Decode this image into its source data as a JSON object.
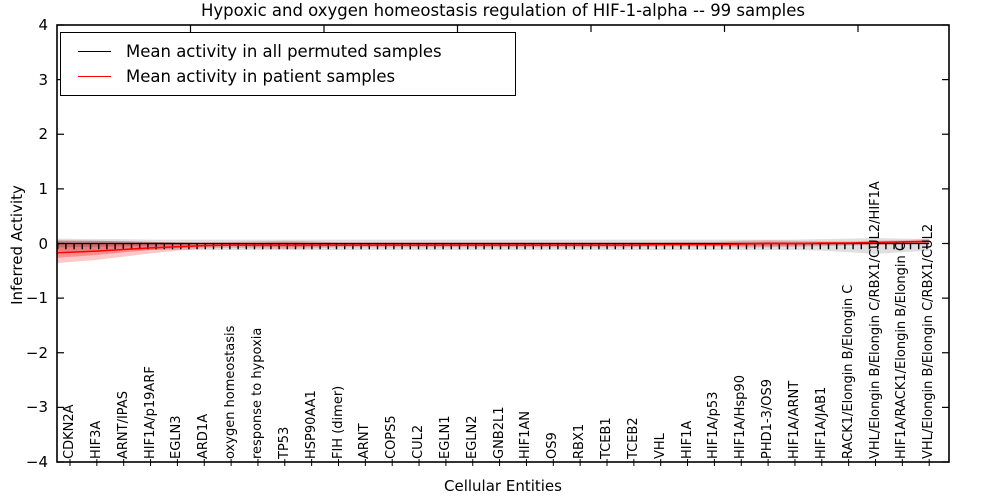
{
  "title": "Hypoxic and oxygen homeostasis regulation of HIF-1-alpha -- 99 samples",
  "legend": {
    "entries": [
      {
        "label": "Mean activity in all permuted samples",
        "color": "#000000"
      },
      {
        "label": "Mean activity in patient samples",
        "color": "#ff0000"
      }
    ],
    "position": "upper left"
  },
  "axes": {
    "y_label": "Inferred Activity",
    "x_label": "Cellular Entities",
    "y_ticks": [
      "4",
      "3",
      "2",
      "1",
      "0",
      "−1",
      "−2",
      "−3",
      "−4"
    ],
    "y_tick_values": [
      4,
      3,
      2,
      1,
      0,
      -1,
      -2,
      -3,
      -4
    ]
  },
  "chart_data": {
    "type": "line",
    "title": "Hypoxic and oxygen homeostasis regulation of HIF-1-alpha -- 99 samples",
    "xlabel": "Cellular Entities",
    "ylabel": "Inferred Activity",
    "ylim": [
      -4,
      4
    ],
    "grid": false,
    "legend_position": "upper left",
    "categories": [
      "CDKN2A",
      "HIF3A",
      "ARNT/IPAS",
      "HIF1A/p19ARF",
      "EGLN3",
      "ARD1A",
      "oxygen homeostasis",
      "response to hypoxia",
      "TP53",
      "HSP90AA1",
      "FIH (dimer)",
      "ARNT",
      "COPS5",
      "CUL2",
      "EGLN1",
      "EGLN2",
      "GNB2L1",
      "HIF1AN",
      "OS9",
      "RBX1",
      "TCEB1",
      "TCEB2",
      "VHL",
      "HIF1A",
      "HIF1A/p53",
      "HIF1A/Hsp90",
      "PHD1-3/OS9",
      "HIF1A/ARNT",
      "HIF1A/JAB1",
      "RACK1/Elongin B/Elongin C",
      "VHL/Elongin B/Elongin C/RBX1/CUL2/HIF1A",
      "HIF1A/RACK1/Elongin B/Elongin C",
      "VHL/Elongin B/Elongin C/RBX1/CUL2"
    ],
    "series": [
      {
        "name": "permuted-band-outer",
        "type": "band",
        "color": "#aaaaaa",
        "opacity": 0.38,
        "low": [
          -0.14,
          -0.13,
          -0.12,
          -0.12,
          -0.12,
          -0.12,
          -0.12,
          -0.12,
          -0.12,
          -0.12,
          -0.12,
          -0.12,
          -0.12,
          -0.12,
          -0.12,
          -0.12,
          -0.12,
          -0.12,
          -0.12,
          -0.12,
          -0.12,
          -0.12,
          -0.12,
          -0.12,
          -0.12,
          -0.12,
          -0.12,
          -0.12,
          -0.13,
          -0.16,
          -0.19,
          -0.16,
          -0.13
        ],
        "high": [
          0.09,
          0.08,
          0.08,
          0.07,
          0.07,
          0.07,
          0.07,
          0.07,
          0.07,
          0.07,
          0.07,
          0.07,
          0.07,
          0.07,
          0.07,
          0.07,
          0.07,
          0.07,
          0.07,
          0.07,
          0.07,
          0.07,
          0.07,
          0.07,
          0.07,
          0.07,
          0.07,
          0.07,
          0.08,
          0.09,
          0.1,
          0.09,
          0.08
        ]
      },
      {
        "name": "permuted-band-inner",
        "type": "band",
        "color": "#777777",
        "opacity": 0.45,
        "low": [
          -0.07,
          -0.06,
          -0.05,
          -0.04,
          -0.03,
          -0.01,
          0,
          0,
          0,
          0,
          0,
          0,
          0,
          0,
          0,
          0,
          0,
          0,
          0,
          0,
          0,
          0,
          0,
          0,
          0,
          0,
          0,
          0,
          0,
          0,
          0,
          0,
          0
        ],
        "high": [
          0.05,
          0.05,
          0.04,
          0.03,
          0.02,
          0.01,
          0,
          0,
          0,
          0,
          0,
          0,
          0,
          0,
          0,
          0,
          0,
          0,
          0,
          0,
          0,
          0,
          0,
          0,
          0,
          0,
          0,
          0,
          0,
          0,
          0,
          0,
          0
        ]
      },
      {
        "name": "patient-band-outer",
        "type": "band",
        "color": "#ff0000",
        "opacity": 0.22,
        "low": [
          -0.36,
          -0.3,
          -0.24,
          -0.18,
          -0.13,
          -0.09,
          -0.08,
          -0.09,
          -0.1,
          -0.09,
          -0.07,
          -0.07,
          -0.07,
          -0.07,
          -0.07,
          -0.07,
          -0.07,
          -0.07,
          -0.07,
          -0.07,
          -0.07,
          -0.07,
          -0.06,
          -0.06,
          -0.06,
          -0.07,
          -0.07,
          -0.06,
          -0.05,
          -0.04,
          -0.03,
          -0.02,
          -0.01
        ],
        "high": [
          0.06,
          0.05,
          0.04,
          0.03,
          0.02,
          0.02,
          0.03,
          0.04,
          0.05,
          0.04,
          0.02,
          0.02,
          0.02,
          0.02,
          0.02,
          0.02,
          0.02,
          0.02,
          0.02,
          0.02,
          0.02,
          0.02,
          0.02,
          0.03,
          0.03,
          0.05,
          0.06,
          0.05,
          0.04,
          0.04,
          0.05,
          0.06,
          0.08
        ]
      },
      {
        "name": "patient-band-inner",
        "type": "band",
        "color": "#ff0000",
        "opacity": 0.28,
        "low": [
          -0.26,
          -0.21,
          -0.16,
          -0.12,
          -0.09,
          -0.06,
          -0.05,
          -0.06,
          -0.07,
          -0.06,
          -0.05,
          -0.05,
          -0.05,
          -0.05,
          -0.05,
          -0.05,
          -0.05,
          -0.05,
          -0.05,
          -0.05,
          -0.05,
          -0.05,
          -0.04,
          -0.04,
          -0.04,
          -0.05,
          -0.05,
          -0.04,
          -0.03,
          -0.02,
          -0.01,
          0.0,
          0.01
        ],
        "high": [
          0.01,
          0.01,
          0.0,
          0.0,
          0.0,
          0.0,
          0.01,
          0.01,
          0.02,
          0.01,
          0.0,
          0.0,
          0.0,
          0.0,
          0.0,
          0.0,
          0.0,
          0.0,
          0.0,
          0.0,
          0.0,
          0.0,
          0.0,
          0.01,
          0.01,
          0.02,
          0.03,
          0.02,
          0.01,
          0.01,
          0.02,
          0.03,
          0.05
        ]
      },
      {
        "name": "Mean activity in all permuted samples",
        "type": "line",
        "color": "#000000",
        "width": 1.3,
        "values": [
          0,
          0,
          0,
          0,
          0,
          0,
          0,
          0,
          0,
          0,
          0,
          0,
          0,
          0,
          0,
          0,
          0,
          0,
          0,
          0,
          0,
          0,
          0,
          0,
          0,
          0,
          0,
          0,
          0,
          0,
          0,
          0,
          0
        ]
      },
      {
        "name": "sample-tick-markers",
        "type": "dashline",
        "color": "#000000",
        "y": -0.055,
        "width": 5.5,
        "dash": "1.4 6.8"
      },
      {
        "name": "Mean activity in patient samples",
        "type": "line",
        "color": "#ff0000",
        "width": 1.5,
        "values": [
          -0.17,
          -0.14,
          -0.11,
          -0.08,
          -0.06,
          -0.04,
          -0.03,
          -0.03,
          -0.03,
          -0.03,
          -0.03,
          -0.03,
          -0.03,
          -0.03,
          -0.03,
          -0.03,
          -0.03,
          -0.03,
          -0.03,
          -0.03,
          -0.03,
          -0.03,
          -0.02,
          -0.02,
          -0.02,
          -0.01,
          0.0,
          0.0,
          0.01,
          0.01,
          0.02,
          0.03,
          0.04
        ]
      }
    ]
  }
}
